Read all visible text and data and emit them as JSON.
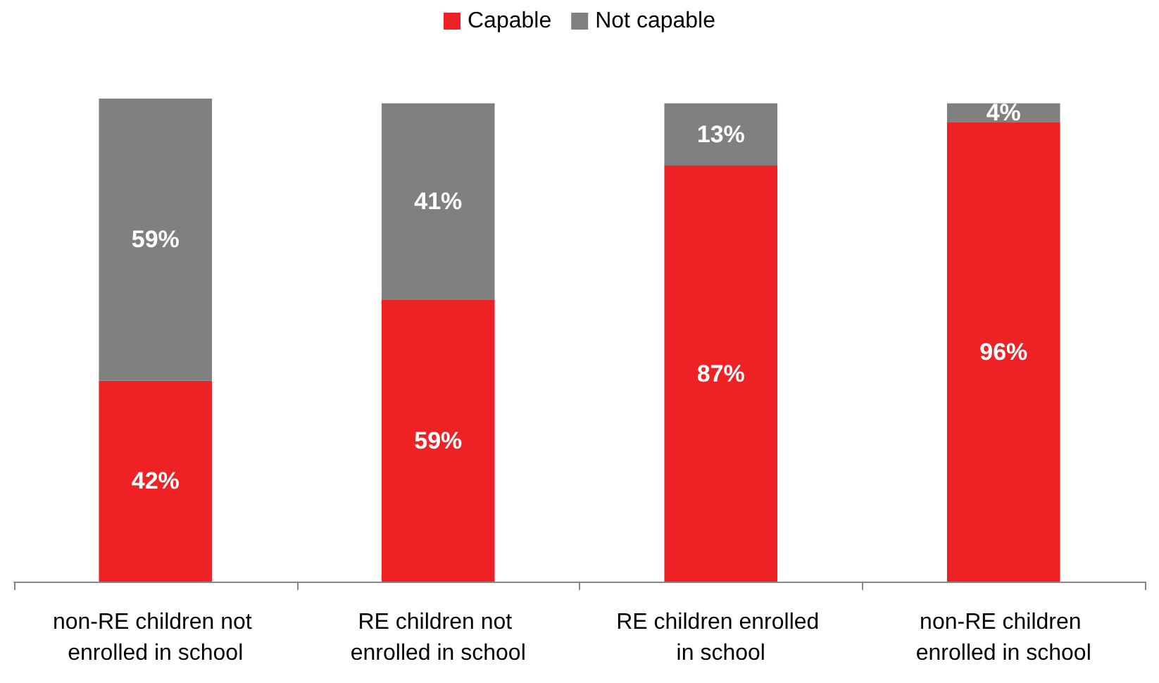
{
  "chart_data": {
    "type": "bar",
    "stacked": true,
    "legend": "top",
    "categories": [
      "non-RE children not enrolled in school",
      "RE children not enrolled in school",
      "RE children enrolled in school",
      "non-RE children enrolled in school"
    ],
    "series": [
      {
        "name": "Capable",
        "color": "#ee2224",
        "values": [
          42,
          59,
          87,
          96
        ],
        "value_labels": [
          "42%",
          "59%",
          "87%",
          "96%"
        ]
      },
      {
        "name": "Not capable",
        "color": "#808080",
        "values": [
          59,
          41,
          13,
          4
        ],
        "value_labels": [
          "59%",
          "41%",
          "13%",
          "4%"
        ]
      }
    ]
  }
}
